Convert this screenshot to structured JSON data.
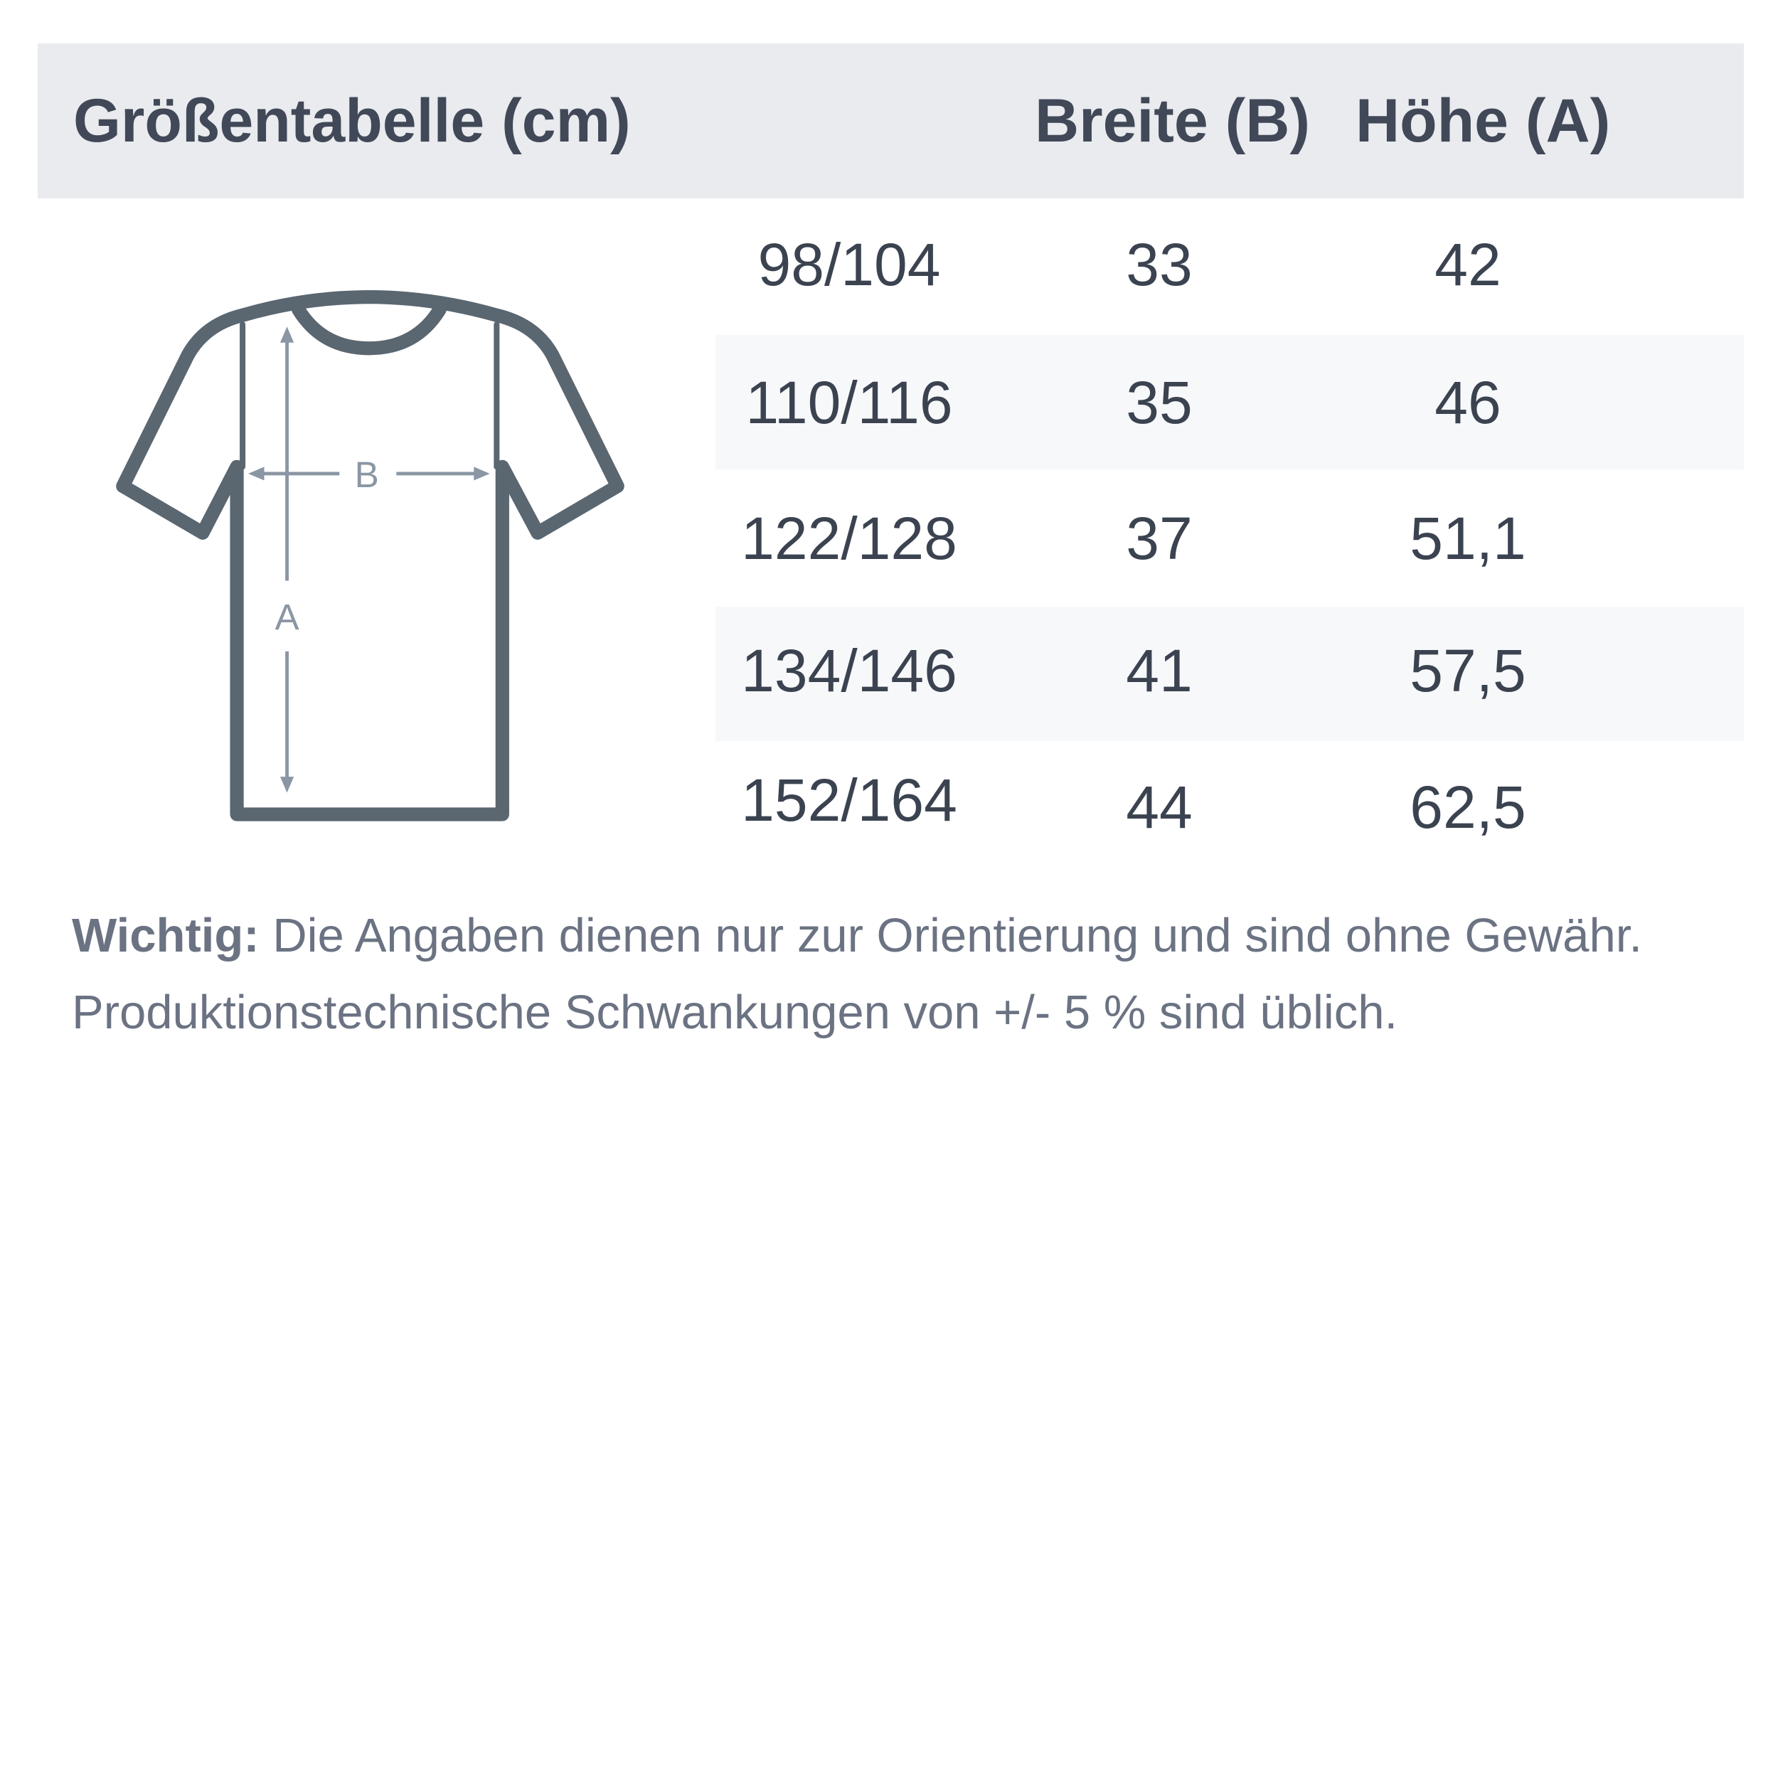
{
  "header": {
    "title": "Größentabelle (cm)",
    "col_width": "Breite (B)",
    "col_height": "Höhe (A)"
  },
  "rows": [
    {
      "size": "98/104",
      "width": "33",
      "height": "42"
    },
    {
      "size": "110/116",
      "width": "35",
      "height": "46"
    },
    {
      "size": "122/128",
      "width": "37",
      "height": "51,1"
    },
    {
      "size": "134/146",
      "width": "41",
      "height": "57,5"
    },
    {
      "size": "152/164",
      "width": "44",
      "height": "62,5"
    }
  ],
  "diagram": {
    "label_b": "B",
    "label_a": "A"
  },
  "note": {
    "bold": "Wichtig:",
    "line1": " Die Angaben dienen nur zur Orientierung und sind ohne Gewähr.",
    "line2": "Produktionstechnische Schwankungen von +/- 5 % sind üblich."
  },
  "colors": {
    "header_bg": "#e9ebef",
    "stripe_bg": "#f7f8fa",
    "outline": "#5a6670",
    "arrow": "#8a96a3"
  }
}
